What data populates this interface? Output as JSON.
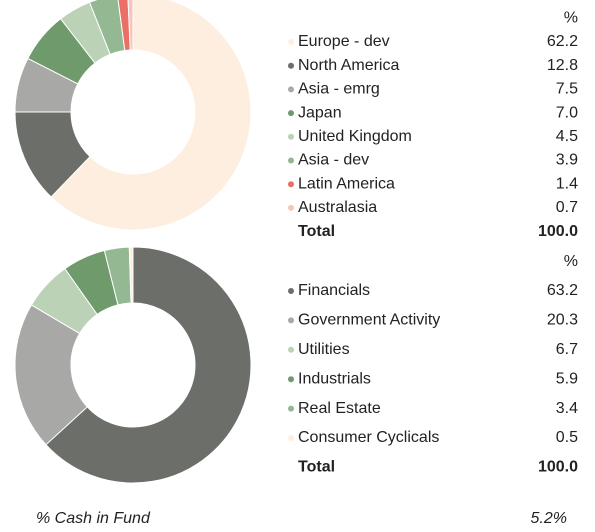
{
  "chart_data": [
    {
      "type": "pie",
      "header": "%",
      "categories": [
        "Europe - dev",
        "North America",
        "Asia - emrg",
        "Japan",
        "United Kingdom",
        "Asia - dev",
        "Latin America",
        "Australasia"
      ],
      "values": [
        62.2,
        12.8,
        7.5,
        7.0,
        4.5,
        3.9,
        1.4,
        0.7
      ],
      "value_labels": [
        "62.2",
        "12.8",
        "7.5",
        "7.0",
        "4.5",
        "3.9",
        "1.4",
        "0.7"
      ],
      "colors": [
        "#fdeee0",
        "#6b6e69",
        "#a8a9a6",
        "#6f9a6c",
        "#bcd2b7",
        "#94b891",
        "#ea7066",
        "#f8c5bb"
      ],
      "total": {
        "label": "Total",
        "value": 100,
        "value_label": "100.0"
      }
    },
    {
      "type": "pie",
      "header": "%",
      "categories": [
        "Financials",
        "Government Activity",
        "Utilities",
        "Industrials",
        "Real Estate",
        "Consumer Cyclicals"
      ],
      "values": [
        63.2,
        20.3,
        6.7,
        5.9,
        3.4,
        0.5
      ],
      "value_labels": [
        "63.2",
        "20.3",
        "6.7",
        "5.9",
        "3.4",
        "0.5"
      ],
      "colors": [
        "#6b6e69",
        "#a8a9a6",
        "#bcd2b7",
        "#6f9a6c",
        "#94b891",
        "#fdeee0"
      ],
      "total": {
        "label": "Total",
        "value": 100,
        "value_label": "100.0"
      }
    }
  ],
  "cash": {
    "label": "% Cash in Fund",
    "value": 5.2,
    "value_label": "5.2%"
  }
}
